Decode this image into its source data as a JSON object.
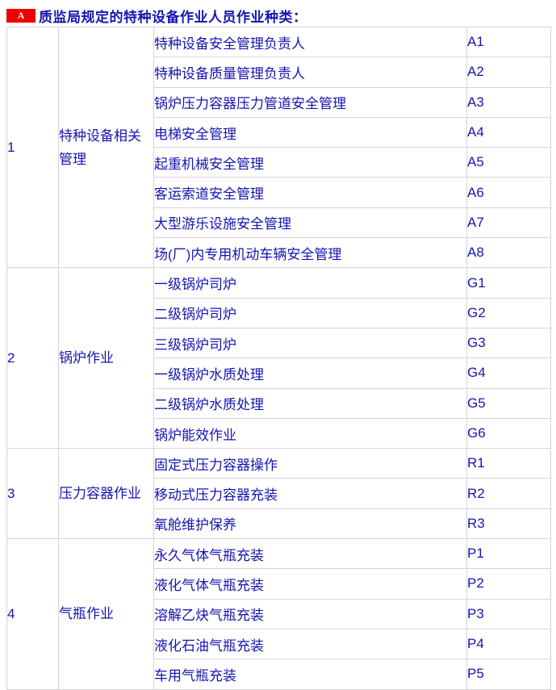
{
  "header": {
    "badge": "A",
    "title": "质监局规定的特种设备作业人员作业种类："
  },
  "colors": {
    "text_blue": "#1515b0",
    "badge_red": "#ee0000",
    "badge_text": "#ffffff",
    "border_gray": "#d4d4d4"
  },
  "table": {
    "sections": [
      {
        "no": "1",
        "category": "特种设备相关管理",
        "items": [
          {
            "name": "特种设备安全管理负责人",
            "code": "A1"
          },
          {
            "name": "特种设备质量管理负责人",
            "code": "A2"
          },
          {
            "name": "锅炉压力容器压力管道安全管理",
            "code": "A3"
          },
          {
            "name": "电梯安全管理",
            "code": "A4"
          },
          {
            "name": "起重机械安全管理",
            "code": "A5"
          },
          {
            "name": "客运索道安全管理",
            "code": "A6"
          },
          {
            "name": "大型游乐设施安全管理",
            "code": "A7"
          },
          {
            "name": "场(厂)内专用机动车辆安全管理",
            "code": "A8"
          }
        ]
      },
      {
        "no": "2",
        "category": "锅炉作业",
        "items": [
          {
            "name": "一级锅炉司炉",
            "code": "G1"
          },
          {
            "name": "二级锅炉司炉",
            "code": "G2"
          },
          {
            "name": "三级锅炉司炉",
            "code": "G3"
          },
          {
            "name": "一级锅炉水质处理",
            "code": "G4"
          },
          {
            "name": "二级锅炉水质处理",
            "code": "G5"
          },
          {
            "name": "锅炉能效作业",
            "code": "G6"
          }
        ]
      },
      {
        "no": "3",
        "category": "压力容器作业",
        "items": [
          {
            "name": "固定式压力容器操作",
            "code": "R1"
          },
          {
            "name": "移动式压力容器充装",
            "code": "R2"
          },
          {
            "name": "氧舱维护保养",
            "code": "R3"
          }
        ]
      },
      {
        "no": "4",
        "category": "气瓶作业",
        "items": [
          {
            "name": "永久气体气瓶充装",
            "code": "P1"
          },
          {
            "name": "液化气体气瓶充装",
            "code": "P2"
          },
          {
            "name": "溶解乙炔气瓶充装",
            "code": "P3"
          },
          {
            "name": "液化石油气瓶充装",
            "code": "P4"
          },
          {
            "name": "车用气瓶充装",
            "code": "P5"
          }
        ]
      }
    ]
  }
}
